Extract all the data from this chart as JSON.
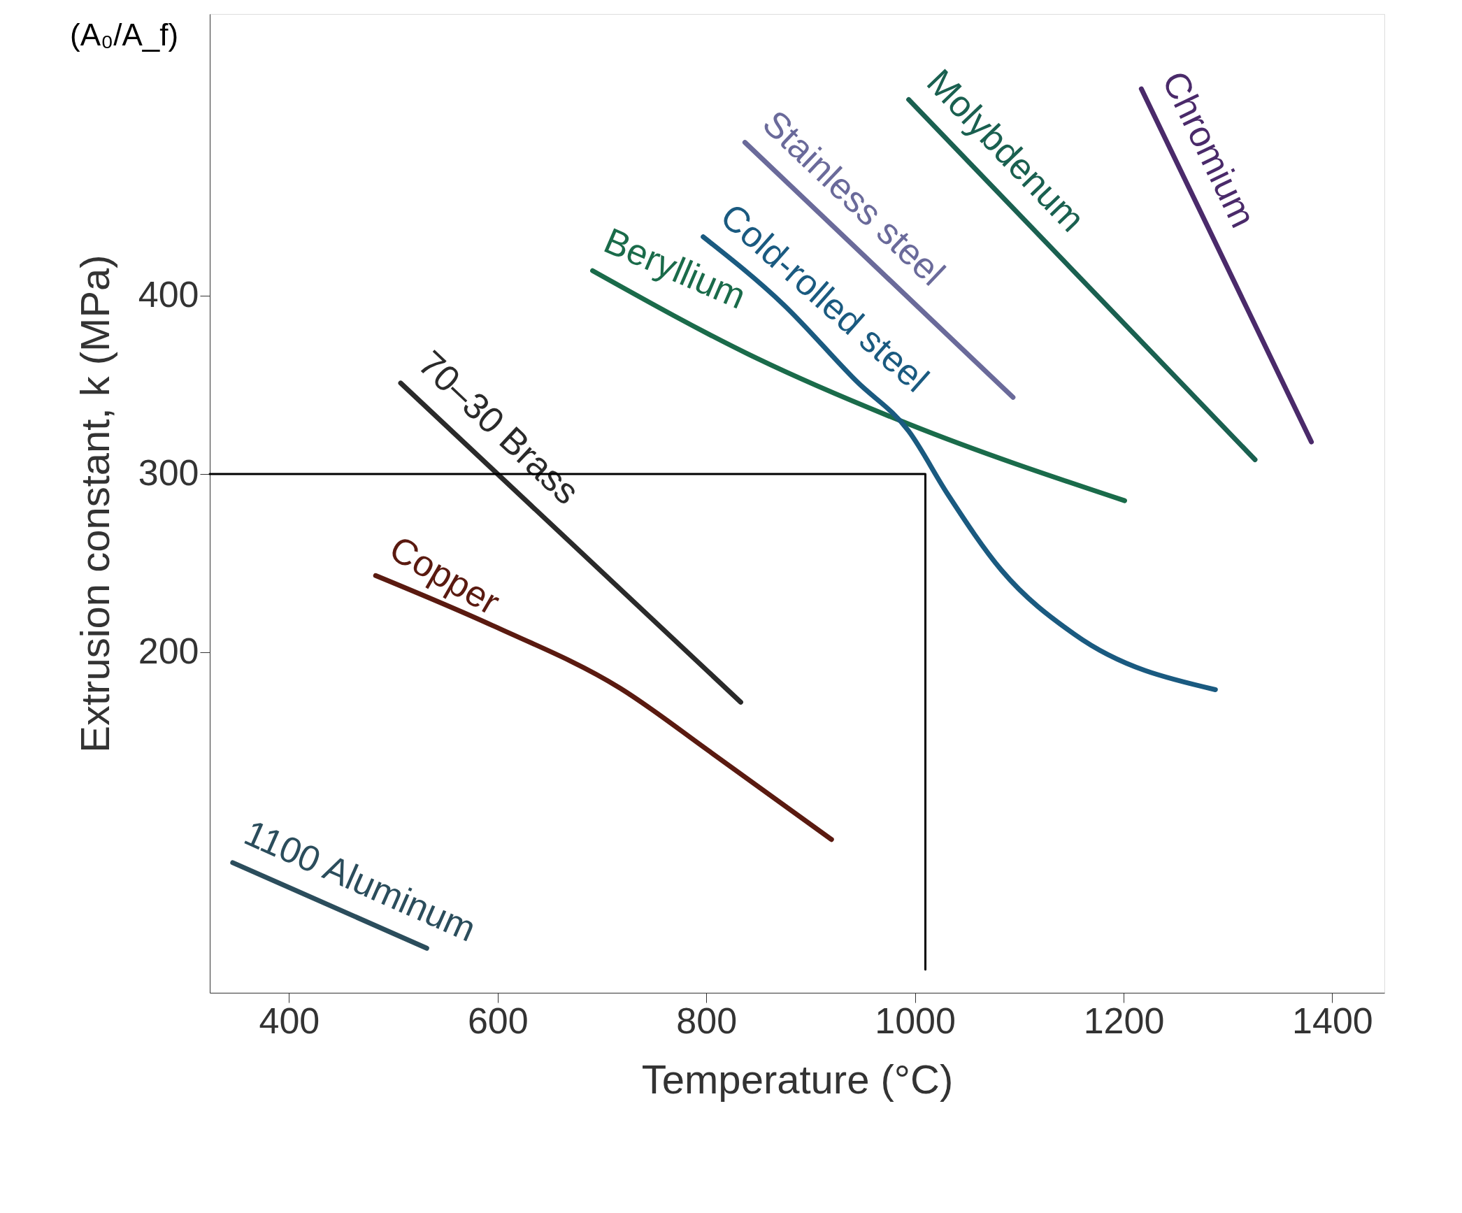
{
  "chart_data": {
    "type": "line",
    "xlabel": "Temperature (°C)",
    "ylabel": "Extrusion constant, k (MPa)",
    "xlim": [
      324,
      1450
    ],
    "ylim": [
      9,
      558
    ],
    "xticks": [
      400,
      600,
      800,
      1000,
      1200,
      1400
    ],
    "yticks": [
      200,
      {
        "value": 300,
        "label": "300"
      },
      400
    ],
    "grid": false,
    "marker": "none",
    "line_style": "solid",
    "annotations": [
      "(A₀/A_f)"
    ],
    "series": [
      {
        "name": "1100 Aluminum",
        "color": "#2b4d5c",
        "x": [
          346,
          532
        ],
        "values": [
          82,
          34
        ]
      },
      {
        "name": "Copper",
        "color": "#5a1a10",
        "x": [
          483,
          595,
          717,
          804,
          920
        ],
        "values": [
          243,
          215,
          180,
          144,
          95
        ]
      },
      {
        "name": "70–30 Brass",
        "color": "#2a2a2a",
        "x": [
          507,
          833
        ],
        "values": [
          351,
          172
        ]
      },
      {
        "name": "Beryllium",
        "color": "#1a6b4a",
        "x": [
          691,
          848,
          994,
          1201
        ],
        "values": [
          414,
          365,
          328,
          285
        ]
      },
      {
        "name": "Cold-rolled steel",
        "color": "#1a5a80",
        "x": [
          797,
          874,
          944,
          994,
          1031,
          1083,
          1153,
          1288
        ],
        "values": [
          433,
          395,
          352,
          324,
          289,
          246,
          210,
          179
        ]
      },
      {
        "name": "Stainless steel",
        "color": "#6a6a9a",
        "x": [
          837,
          1094
        ],
        "values": [
          486,
          343
        ]
      },
      {
        "name": "Molybdenum",
        "color": "#1a6050",
        "x": [
          994,
          1326
        ],
        "values": [
          510,
          308
        ]
      },
      {
        "name": "Chromium",
        "color": "#4a2a6a",
        "x": [
          1217,
          1380
        ],
        "values": [
          516,
          318
        ]
      },
      {
        "color": "#000000",
        "x": [
          324,
          1010,
          1010
        ],
        "values": [
          300,
          300,
          22
        ]
      }
    ]
  }
}
